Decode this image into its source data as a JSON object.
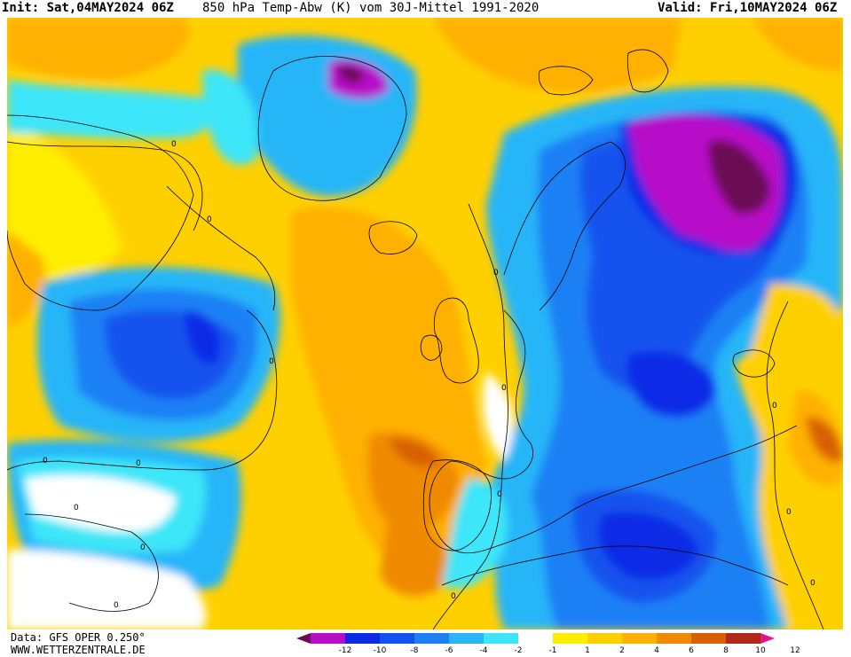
{
  "header": {
    "init": "Init: Sat,04MAY2024 06Z",
    "title": "850 hPa Temp-Abw (K) vom 30J-Mittel 1991-2020",
    "valid": "Valid: Fri,10MAY2024 06Z"
  },
  "footer": {
    "data_source": "Data: GFS OPER 0.250°",
    "website": "WWW.WETTERZENTRALE.DE"
  },
  "legend": {
    "colors": [
      "#6a0a55",
      "#b80ec8",
      "#0a2ae6",
      "#1452ee",
      "#1e80f5",
      "#28b6f8",
      "#3ce6f8",
      "#ffffff",
      "#ffee00",
      "#ffd000",
      "#ffb000",
      "#f08a00",
      "#d86000",
      "#b02818",
      "#e2178e"
    ],
    "ticks": [
      "-12",
      "-10",
      "-8",
      "-6",
      "-4",
      "-2",
      "-1",
      "1",
      "2",
      "4",
      "6",
      "8",
      "10",
      "12"
    ]
  },
  "contour_labels": [
    "0",
    "0",
    "0",
    "0",
    "0",
    "0",
    "0",
    "0",
    "0",
    "0",
    "0",
    "0",
    "0",
    "0",
    "0"
  ]
}
